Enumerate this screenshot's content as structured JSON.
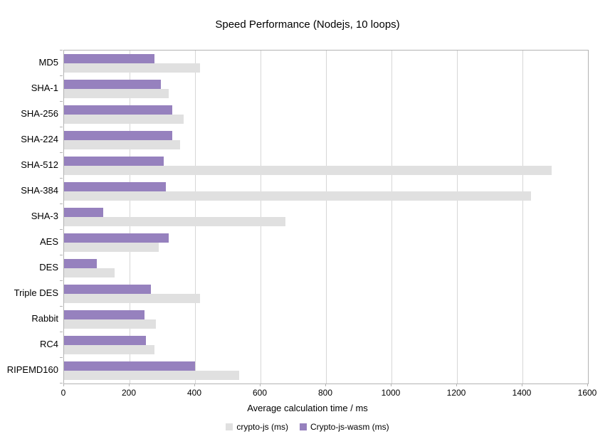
{
  "chart_data": {
    "type": "bar",
    "orientation": "horizontal",
    "title": "Speed Performance (Nodejs, 10 loops)",
    "xlabel": "Average calculation time / ms",
    "ylabel": "",
    "xlim": [
      0,
      1600
    ],
    "xticks": [
      0,
      200,
      400,
      600,
      800,
      1000,
      1200,
      1400,
      1600
    ],
    "grid": true,
    "legend_position": "bottom",
    "categories": [
      "MD5",
      "SHA-1",
      "SHA-256",
      "SHA-224",
      "SHA-512",
      "SHA-384",
      "SHA-3",
      "AES",
      "DES",
      "Triple DES",
      "Rabbit",
      "RC4",
      "RIPEMD160"
    ],
    "series": [
      {
        "name": "crypto-js (ms)",
        "color": "#e0e0e0",
        "values": [
          415,
          320,
          365,
          355,
          1490,
          1425,
          675,
          290,
          155,
          415,
          280,
          275,
          535
        ]
      },
      {
        "name": "Crypto-js-wasm (ms)",
        "color": "#9681be",
        "values": [
          275,
          295,
          330,
          330,
          305,
          310,
          120,
          320,
          100,
          265,
          245,
          250,
          400
        ]
      }
    ],
    "colors": {
      "gridline": "#d6d6d6",
      "axis": "#b3b3b3",
      "text": "#000000",
      "background": "#ffffff"
    }
  }
}
